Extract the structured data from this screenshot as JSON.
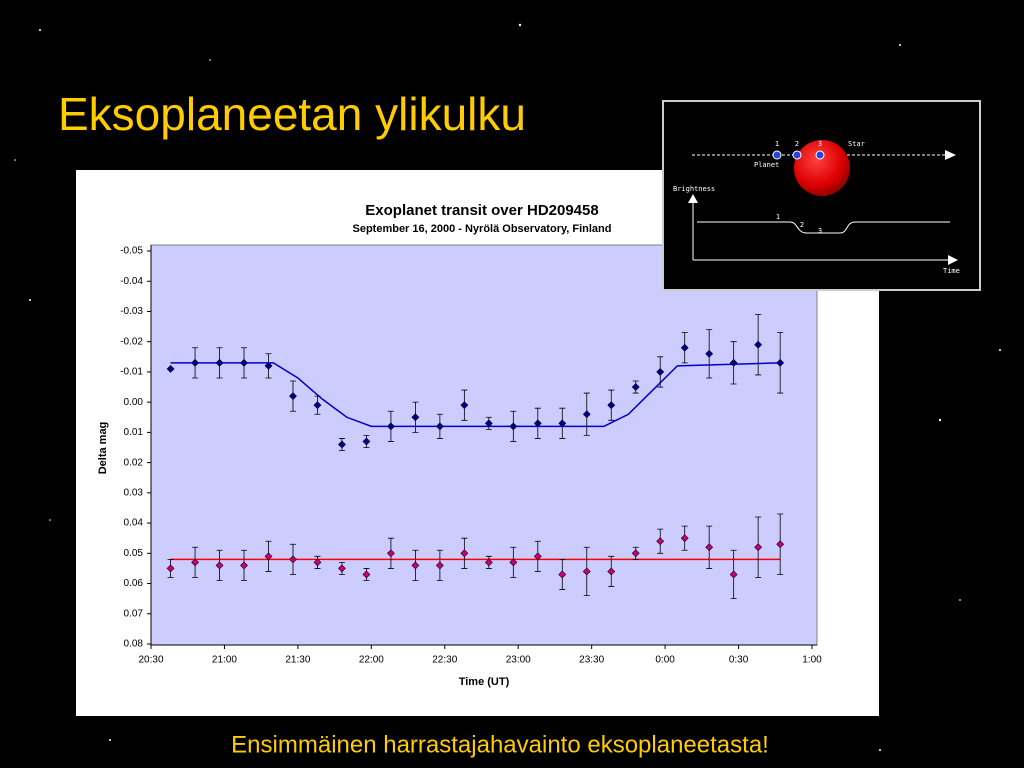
{
  "title": "Eksoplaneetan ylikulku",
  "caption": "Ensimmäinen harrastajahavainto eksoplaneetasta!",
  "diagram": {
    "positions": [
      "1",
      "2",
      "3"
    ],
    "star": "Star",
    "planet": "Planet",
    "y_label": "Brightness",
    "x_label": "Time",
    "curve_points": [
      "1",
      "2",
      "3"
    ]
  },
  "chart_data": {
    "type": "scatter",
    "title": "Exoplanet transit over HD209458",
    "subtitle": "September 16, 2000 - Nyrölä Observatory, Finland",
    "x_label": "Time (UT)",
    "y_label": "Delta mag",
    "xlim": [
      "20:30",
      "1:00"
    ],
    "xticks": [
      "20:30",
      "21:00",
      "21:30",
      "22:00",
      "22:30",
      "23:00",
      "23:30",
      "0:00",
      "0:30",
      "1:00"
    ],
    "ylim": [
      -0.05,
      0.08
    ],
    "y_inverted": true,
    "yticks": [
      -0.05,
      -0.04,
      -0.03,
      -0.02,
      -0.01,
      {
        "value": 0,
        "label": "0.00"
      },
      0.01,
      0.02,
      0.03,
      0.04,
      0.05,
      0.06,
      0.07,
      0.08
    ],
    "series": [
      {
        "mode": "markers",
        "color": "#000080",
        "x": [
          "20:38",
          "20:48",
          "20:58",
          "21:08",
          "21:18",
          "21:28",
          "21:38",
          "21:48",
          "21:58",
          "22:08",
          "22:18",
          "22:28",
          "22:38",
          "22:48",
          "22:58",
          "23:08",
          "23:18",
          "23:28",
          "23:38",
          "23:48",
          "23:58",
          "0:08",
          "0:18",
          "0:28",
          "0:38",
          "0:47"
        ],
        "values": [
          -0.011,
          -0.013,
          -0.013,
          -0.013,
          -0.012,
          -0.002,
          0.001,
          0.014,
          0.013,
          0.008,
          0.005,
          0.008,
          0.001,
          0.007,
          0.008,
          0.007,
          0.007,
          0.004,
          0.001,
          -0.005,
          -0.01,
          -0.018,
          -0.016,
          -0.013,
          -0.019,
          -0.013
        ],
        "errors": [
          0,
          0.005,
          0.005,
          0.005,
          0.004,
          0.005,
          0.003,
          0.002,
          0.002,
          0.005,
          0.005,
          0.004,
          0.005,
          0.002,
          0.005,
          0.005,
          0.005,
          0.007,
          0.005,
          0.002,
          0.005,
          0.005,
          0.008,
          0.007,
          0.01,
          0.01
        ]
      },
      {
        "mode": "markers",
        "color": "#cc0066",
        "x": [
          "20:38",
          "20:48",
          "20:58",
          "21:08",
          "21:18",
          "21:28",
          "21:38",
          "21:48",
          "21:58",
          "22:08",
          "22:18",
          "22:28",
          "22:38",
          "22:48",
          "22:58",
          "23:08",
          "23:18",
          "23:28",
          "23:38",
          "23:48",
          "23:58",
          "0:08",
          "0:18",
          "0:28",
          "0:38",
          "0:47"
        ],
        "values": [
          0.055,
          0.053,
          0.054,
          0.054,
          0.051,
          0.052,
          0.053,
          0.055,
          0.057,
          0.05,
          0.054,
          0.054,
          0.05,
          0.053,
          0.053,
          0.051,
          0.057,
          0.056,
          0.056,
          0.05,
          0.046,
          0.045,
          0.048,
          0.057,
          0.048,
          0.047
        ],
        "errors": [
          0.003,
          0.005,
          0.005,
          0.005,
          0.005,
          0.005,
          0.002,
          0.002,
          0.002,
          0.005,
          0.005,
          0.005,
          0.005,
          0.002,
          0.005,
          0.005,
          0.005,
          0.008,
          0.005,
          0.002,
          0.004,
          0.004,
          0.007,
          0.008,
          0.01,
          0.01
        ]
      },
      {
        "mode": "line",
        "color": "#0000cc",
        "x": [
          "20:38",
          "21:20",
          "21:30",
          "21:40",
          "21:50",
          "22:00",
          "23:35",
          "23:45",
          "23:55",
          "0:05",
          "0:47"
        ],
        "values": [
          -0.013,
          -0.013,
          -0.008,
          -0.001,
          0.005,
          0.008,
          0.008,
          0.004,
          -0.004,
          -0.012,
          -0.013
        ]
      },
      {
        "mode": "line",
        "color": "#ff0000",
        "x": [
          "20:38",
          "0:47"
        ],
        "values": [
          0.052,
          0.052
        ]
      }
    ]
  }
}
